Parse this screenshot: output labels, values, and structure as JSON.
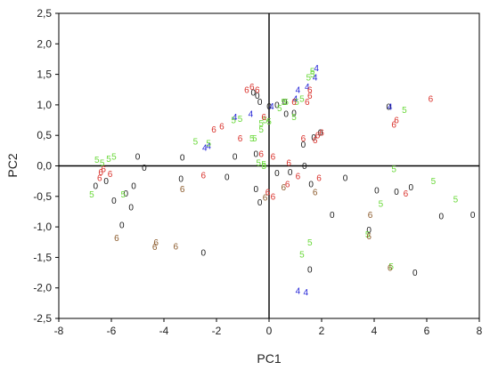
{
  "chart_data": {
    "type": "scatter",
    "title": "",
    "xlabel": "PC1",
    "ylabel": "PC2",
    "xlim": [
      -8,
      8
    ],
    "ylim": [
      -2.5,
      2.5
    ],
    "xticks": [
      "-8",
      "-6",
      "-4",
      "-2",
      "0",
      "2",
      "4",
      "6",
      "8"
    ],
    "yticks": [
      "2,5",
      "2,0",
      "1,5",
      "1,0",
      "0,5",
      "0,0",
      "-0,5",
      "-1,0",
      "-1,5",
      "-2,0",
      "-2,5"
    ],
    "grid": false,
    "legend": "none",
    "groups": [
      {
        "label": "0",
        "color": "#1a1a1a",
        "points": [
          [
            -5.0,
            0.15
          ],
          [
            -4.75,
            -0.03
          ],
          [
            -5.15,
            -0.33
          ],
          [
            -5.45,
            -0.45
          ],
          [
            -5.9,
            -0.57
          ],
          [
            -5.25,
            -0.68
          ],
          [
            -5.6,
            -0.97
          ],
          [
            -6.6,
            -0.33
          ],
          [
            -6.2,
            -0.25
          ],
          [
            -3.3,
            0.14
          ],
          [
            -3.35,
            -0.21
          ],
          [
            -1.3,
            0.15
          ],
          [
            -1.6,
            -0.18
          ],
          [
            -0.5,
            0.2
          ],
          [
            -0.5,
            -0.38
          ],
          [
            -0.35,
            -0.6
          ],
          [
            -0.6,
            1.2
          ],
          [
            -0.45,
            1.15
          ],
          [
            -0.35,
            1.05
          ],
          [
            0.0,
            0.98
          ],
          [
            0.3,
            1.0
          ],
          [
            0.6,
            1.05
          ],
          [
            0.65,
            0.85
          ],
          [
            0.95,
            0.87
          ],
          [
            1.3,
            0.35
          ],
          [
            1.7,
            0.47
          ],
          [
            1.95,
            0.55
          ],
          [
            1.35,
            0.0
          ],
          [
            0.3,
            -0.12
          ],
          [
            0.8,
            -0.1
          ],
          [
            1.6,
            -0.3
          ],
          [
            2.9,
            -0.2
          ],
          [
            2.4,
            -0.8
          ],
          [
            4.1,
            -0.4
          ],
          [
            4.85,
            -0.42
          ],
          [
            5.4,
            -0.35
          ],
          [
            4.55,
            0.97
          ],
          [
            3.8,
            -1.05
          ],
          [
            1.55,
            -1.7
          ],
          [
            5.55,
            -1.75
          ],
          [
            6.55,
            -0.82
          ],
          [
            7.75,
            -0.8
          ],
          [
            -2.5,
            -1.42
          ]
        ]
      },
      {
        "label": "4",
        "color": "#1f1fd6",
        "points": [
          [
            -2.45,
            0.3
          ],
          [
            -2.3,
            0.33
          ],
          [
            -1.3,
            0.8
          ],
          [
            -0.7,
            0.85
          ],
          [
            0.1,
            0.98
          ],
          [
            1.0,
            1.1
          ],
          [
            1.1,
            1.25
          ],
          [
            1.45,
            1.3
          ],
          [
            1.75,
            1.45
          ],
          [
            1.8,
            1.6
          ],
          [
            4.6,
            0.97
          ],
          [
            1.1,
            -2.05
          ],
          [
            1.4,
            -2.07
          ]
        ]
      },
      {
        "label": "5",
        "color": "#6ad93a",
        "points": [
          [
            -6.35,
            0.05
          ],
          [
            -6.55,
            0.1
          ],
          [
            -6.1,
            0.12
          ],
          [
            -5.9,
            0.15
          ],
          [
            -6.75,
            -0.47
          ],
          [
            -5.55,
            -0.47
          ],
          [
            -2.8,
            0.4
          ],
          [
            -2.3,
            0.37
          ],
          [
            -1.35,
            0.75
          ],
          [
            -1.1,
            0.77
          ],
          [
            -0.65,
            0.45
          ],
          [
            -0.55,
            0.45
          ],
          [
            -0.4,
            0.05
          ],
          [
            -0.2,
            0.0
          ],
          [
            -0.3,
            0.7
          ],
          [
            0.0,
            0.73
          ],
          [
            -0.15,
            0.75
          ],
          [
            -0.3,
            0.6
          ],
          [
            0.4,
            0.95
          ],
          [
            0.55,
            1.05
          ],
          [
            0.65,
            1.05
          ],
          [
            1.05,
            1.05
          ],
          [
            1.25,
            1.1
          ],
          [
            0.95,
            0.8
          ],
          [
            1.5,
            1.45
          ],
          [
            1.65,
            1.5
          ],
          [
            1.65,
            1.55
          ],
          [
            5.15,
            0.92
          ],
          [
            4.75,
            -0.05
          ],
          [
            4.25,
            -0.62
          ],
          [
            6.25,
            -0.25
          ],
          [
            7.1,
            -0.55
          ],
          [
            3.75,
            -1.12
          ],
          [
            4.65,
            -1.65
          ],
          [
            1.25,
            -1.45
          ],
          [
            1.55,
            -1.25
          ],
          [
            -0.2,
            0.03
          ]
        ]
      },
      {
        "label": "6",
        "color": "#d9302a",
        "points": [
          [
            -6.4,
            -0.1
          ],
          [
            -6.3,
            -0.05
          ],
          [
            -6.45,
            -0.2
          ],
          [
            -6.05,
            -0.13
          ],
          [
            -2.1,
            0.6
          ],
          [
            -1.1,
            0.45
          ],
          [
            -1.8,
            0.65
          ],
          [
            -0.65,
            1.3
          ],
          [
            -0.45,
            1.25
          ],
          [
            -0.85,
            1.25
          ],
          [
            -0.3,
            0.2
          ],
          [
            -0.2,
            0.8
          ],
          [
            0.15,
            0.15
          ],
          [
            0.75,
            0.05
          ],
          [
            -0.05,
            -0.43
          ],
          [
            0.15,
            -0.5
          ],
          [
            0.7,
            -0.3
          ],
          [
            1.1,
            -0.17
          ],
          [
            1.3,
            0.45
          ],
          [
            0.95,
            1.05
          ],
          [
            1.45,
            1.05
          ],
          [
            1.55,
            1.15
          ],
          [
            1.55,
            1.25
          ],
          [
            1.85,
            0.5
          ],
          [
            1.75,
            0.42
          ],
          [
            1.9,
            -0.2
          ],
          [
            2.0,
            0.55
          ],
          [
            -2.5,
            -0.15
          ],
          [
            4.85,
            0.75
          ],
          [
            4.75,
            0.68
          ],
          [
            6.15,
            1.1
          ],
          [
            5.2,
            -0.45
          ]
        ]
      },
      {
        "label": "6",
        "color": "#8b5a2b",
        "points": [
          [
            -5.8,
            -1.18
          ],
          [
            -4.3,
            -1.25
          ],
          [
            -4.35,
            -1.33
          ],
          [
            -3.55,
            -1.32
          ],
          [
            -3.3,
            -0.38
          ],
          [
            -0.15,
            -0.52
          ],
          [
            0.55,
            -0.35
          ],
          [
            1.75,
            -0.43
          ],
          [
            3.85,
            -0.8
          ],
          [
            3.8,
            -1.15
          ],
          [
            4.6,
            -1.67
          ]
        ]
      }
    ]
  }
}
